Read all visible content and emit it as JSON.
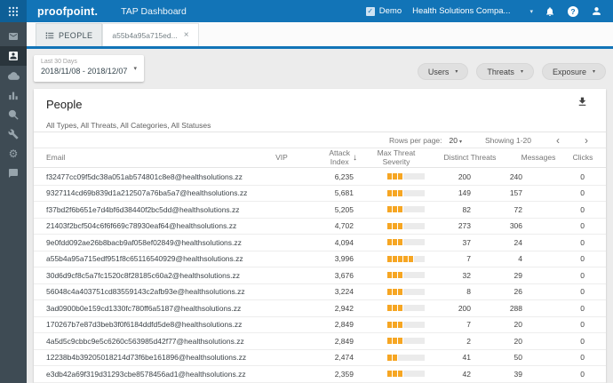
{
  "header": {
    "product": "proofpoint.",
    "app_title": "TAP Dashboard",
    "demo_label": "Demo",
    "demo_checked": true,
    "org_selector": "Health Solutions Compa..."
  },
  "sidebar": {
    "items": [
      {
        "icon": "mail-icon"
      },
      {
        "icon": "people-icon",
        "active": true
      },
      {
        "icon": "cloud-icon"
      },
      {
        "icon": "bar-chart-icon"
      },
      {
        "icon": "search-icon"
      },
      {
        "icon": "wrench-icon"
      },
      {
        "icon": "gear-icon"
      },
      {
        "icon": "chat-icon"
      }
    ]
  },
  "tabs": [
    {
      "label": "PEOPLE"
    },
    {
      "label": "a55b4a95a715ed...",
      "closable": true
    }
  ],
  "filters": {
    "date_label": "Last 30 Days",
    "date_range": "2018/11/08 - 2018/12/07",
    "buttons": [
      {
        "label": "Users"
      },
      {
        "label": "Threats"
      },
      {
        "label": "Exposure"
      }
    ]
  },
  "card": {
    "title": "People",
    "subtitle": "All Types, All Threats, All Categories, All Statuses",
    "pagination": {
      "rows_per_page_label": "Rows per page:",
      "rows_per_page_value": "20",
      "showing": "Showing 1-20"
    }
  },
  "table": {
    "columns": {
      "email": "Email",
      "vip": "VIP",
      "attack_line1": "Attack",
      "attack_line2": "Index",
      "severity_line1": "Max Threat",
      "severity_line2": "Severity",
      "distinct": "Distinct Threats",
      "messages": "Messages",
      "clicks": "Clicks"
    },
    "severity_total_segments": 6,
    "rows": [
      {
        "email": "f32477cc09f5dc38a051ab574801c8e8@healthsolutions.zz",
        "vip": "",
        "attack_index": "6,235",
        "severity": 3,
        "distinct_threats": "200",
        "messages": "240",
        "clicks": "0"
      },
      {
        "email": "9327114cd69b839d1a212507a76ba5a7@healthsolutions.zz",
        "vip": "",
        "attack_index": "5,681",
        "severity": 3,
        "distinct_threats": "149",
        "messages": "157",
        "clicks": "0"
      },
      {
        "email": "f37bd2f6b651e7d4bf6d38440f2bc5dd@healthsolutions.zz",
        "vip": "",
        "attack_index": "5,205",
        "severity": 3,
        "distinct_threats": "82",
        "messages": "72",
        "clicks": "0"
      },
      {
        "email": "21403f2bcf504c6f6f669c78930eaf64@healthsolutions.zz",
        "vip": "",
        "attack_index": "4,702",
        "severity": 3,
        "distinct_threats": "273",
        "messages": "306",
        "clicks": "0"
      },
      {
        "email": "9e0fdd092ae26b8bacb9af058ef02849@healthsolutions.zz",
        "vip": "",
        "attack_index": "4,094",
        "severity": 3,
        "distinct_threats": "37",
        "messages": "24",
        "clicks": "0"
      },
      {
        "email": "a55b4a95a715edf951f8c65116540929@healthsolutions.zz",
        "vip": "",
        "attack_index": "3,996",
        "severity": 5,
        "distinct_threats": "7",
        "messages": "4",
        "clicks": "0"
      },
      {
        "email": "30d6d9cf8c5a7fc1520c8f28185c60a2@healthsolutions.zz",
        "vip": "",
        "attack_index": "3,676",
        "severity": 3,
        "distinct_threats": "32",
        "messages": "29",
        "clicks": "0"
      },
      {
        "email": "56048c4a403751cd83559143c2afb93e@healthsolutions.zz",
        "vip": "",
        "attack_index": "3,224",
        "severity": 3,
        "distinct_threats": "8",
        "messages": "26",
        "clicks": "0"
      },
      {
        "email": "3ad0900b0e159cd1330fc780ff6a5187@healthsolutions.zz",
        "vip": "",
        "attack_index": "2,942",
        "severity": 3,
        "distinct_threats": "200",
        "messages": "288",
        "clicks": "0"
      },
      {
        "email": "170267b7e87d3beb3f0f6184ddfd5de8@healthsolutions.zz",
        "vip": "",
        "attack_index": "2,849",
        "severity": 3,
        "distinct_threats": "7",
        "messages": "20",
        "clicks": "0"
      },
      {
        "email": "4a5d5c9cbbc9e5c6260c563985d42f77@healthsolutions.zz",
        "vip": "",
        "attack_index": "2,849",
        "severity": 3,
        "distinct_threats": "2",
        "messages": "20",
        "clicks": "0"
      },
      {
        "email": "12238b4b39205018214d73f6be161896@healthsolutions.zz",
        "vip": "",
        "attack_index": "2,474",
        "severity": 2,
        "distinct_threats": "41",
        "messages": "50",
        "clicks": "0"
      },
      {
        "email": "e3db42a69f319d31293cbe8578456ad1@healthsolutions.zz",
        "vip": "",
        "attack_index": "2,359",
        "severity": 3,
        "distinct_threats": "42",
        "messages": "39",
        "clicks": "0"
      }
    ]
  },
  "icons": {
    "caret_down": "▾",
    "sort_desc": "↓",
    "close": "×",
    "check": "✓",
    "chevron_left": "‹",
    "chevron_right": "›",
    "gear": "⚙"
  },
  "colors": {
    "brand_blue": "#1274b7",
    "sidebar_dark": "#3e4b54",
    "severity_orange": "#f6a623",
    "content_background": "#ececec"
  }
}
